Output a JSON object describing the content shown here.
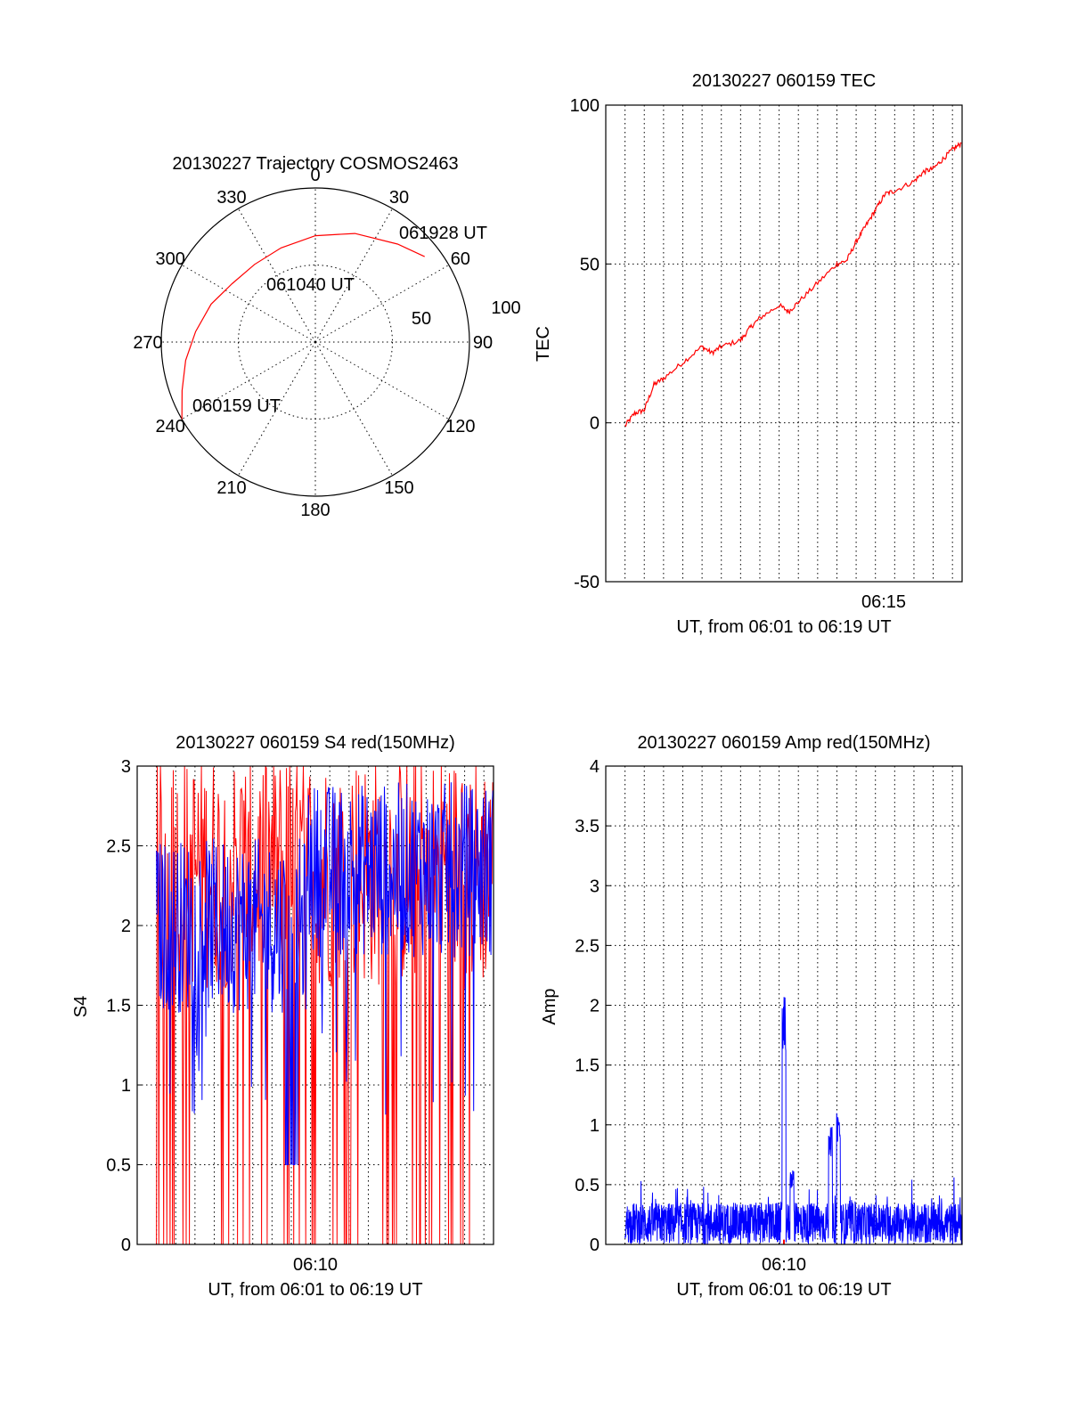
{
  "chart_data": [
    {
      "type": "polar",
      "title": "20130227 Trajectory COSMOS2463",
      "azimuth_labels": [
        "0",
        "30",
        "60",
        "90",
        "120",
        "150",
        "180",
        "210",
        "240",
        "270",
        "300",
        "330"
      ],
      "azimuth_values": [
        0,
        30,
        60,
        90,
        120,
        150,
        180,
        210,
        240,
        270,
        300,
        330
      ],
      "radial_labels": [
        "50",
        "100"
      ],
      "rlim": [
        0,
        100
      ],
      "trajectory": {
        "azimuth": [
          240,
          250,
          262,
          275,
          290,
          305,
          322,
          340,
          0,
          20,
          40,
          52
        ],
        "zenith": [
          100,
          92,
          85,
          78,
          72,
          66,
          64,
          65,
          69,
          75,
          83,
          90
        ]
      },
      "annotations": [
        {
          "label": "060159 UT",
          "azimuth": 240,
          "zenith": 100
        },
        {
          "label": "061040 UT",
          "azimuth": 340,
          "zenith": 65
        },
        {
          "label": "061928 UT",
          "azimuth": 52,
          "zenith": 90
        }
      ],
      "line_color": "#ff0000"
    },
    {
      "type": "line",
      "title": "20130227 060159 TEC",
      "xlabel": "UT, from 06:01 to 06:19 UT",
      "ylabel": "TEC",
      "xlim": [
        "06:01:59",
        "06:19:28"
      ],
      "ylim": [
        -50,
        100
      ],
      "yticks": [
        "-50",
        "0",
        "50",
        "100"
      ],
      "xticks": [
        {
          "label": "06:15",
          "value": "06:15:00"
        }
      ],
      "grid": true,
      "series": [
        {
          "color": "#ff0000",
          "x": [
            "06:02",
            "06:02:30",
            "06:03",
            "06:03:30",
            "06:04",
            "06:05",
            "06:06",
            "06:06:30",
            "06:07",
            "06:08",
            "06:08:30",
            "06:09",
            "06:10",
            "06:10:30",
            "06:11",
            "06:12",
            "06:13",
            "06:13:30",
            "06:14",
            "06:14:30",
            "06:15",
            "06:15:30",
            "06:16",
            "06:17",
            "06:17:30",
            "06:18",
            "06:18:30",
            "06:19",
            "06:19:28"
          ],
          "y": [
            -1,
            3,
            4,
            12,
            14,
            19,
            24,
            22,
            24,
            26,
            30,
            33,
            37,
            35,
            38,
            44,
            50,
            51,
            57,
            62,
            67,
            72,
            73,
            76,
            79,
            80,
            83,
            86,
            88
          ]
        }
      ]
    },
    {
      "type": "line",
      "title": "20130227 060159 S4 red(150MHz)",
      "xlabel": "UT, from 06:01 to 06:19 UT",
      "ylabel": "S4",
      "xlim": [
        "06:01:00",
        "06:19:30"
      ],
      "ylim": [
        0,
        3
      ],
      "yticks": [
        "0",
        "0.5",
        "1",
        "1.5",
        "2",
        "2.5",
        "3"
      ],
      "xticks": [
        {
          "label": "06:10",
          "value": "06:10:00"
        }
      ],
      "grid": true,
      "series": [
        {
          "color": "#ff0000",
          "note_level_min": 0,
          "y_range": [
            0,
            3
          ]
        },
        {
          "color": "#0000ff",
          "y_range": [
            0.5,
            3
          ]
        }
      ]
    },
    {
      "type": "line",
      "title": "20130227 060159 Amp red(150MHz)",
      "xlabel": "UT, from 06:01 to 06:19 UT",
      "ylabel": "Amp",
      "xlim": [
        "06:01:00",
        "06:19:30"
      ],
      "ylim": [
        0,
        4
      ],
      "yticks": [
        "0",
        "0.5",
        "1",
        "1.5",
        "2",
        "2.5",
        "3",
        "3.5",
        "4"
      ],
      "xticks": [
        {
          "label": "06:10",
          "value": "06:10:00"
        }
      ],
      "grid": true,
      "series": [
        {
          "color": "#0000ff",
          "peaks": [
            {
              "x": "06:10:15",
              "y": 2.07
            },
            {
              "x": "06:13:05",
              "y": 1.1
            },
            {
              "x": "06:12:40",
              "y": 0.98
            },
            {
              "x": "06:10:40",
              "y": 0.62
            }
          ]
        },
        {
          "color": "#ff0000"
        }
      ]
    }
  ]
}
